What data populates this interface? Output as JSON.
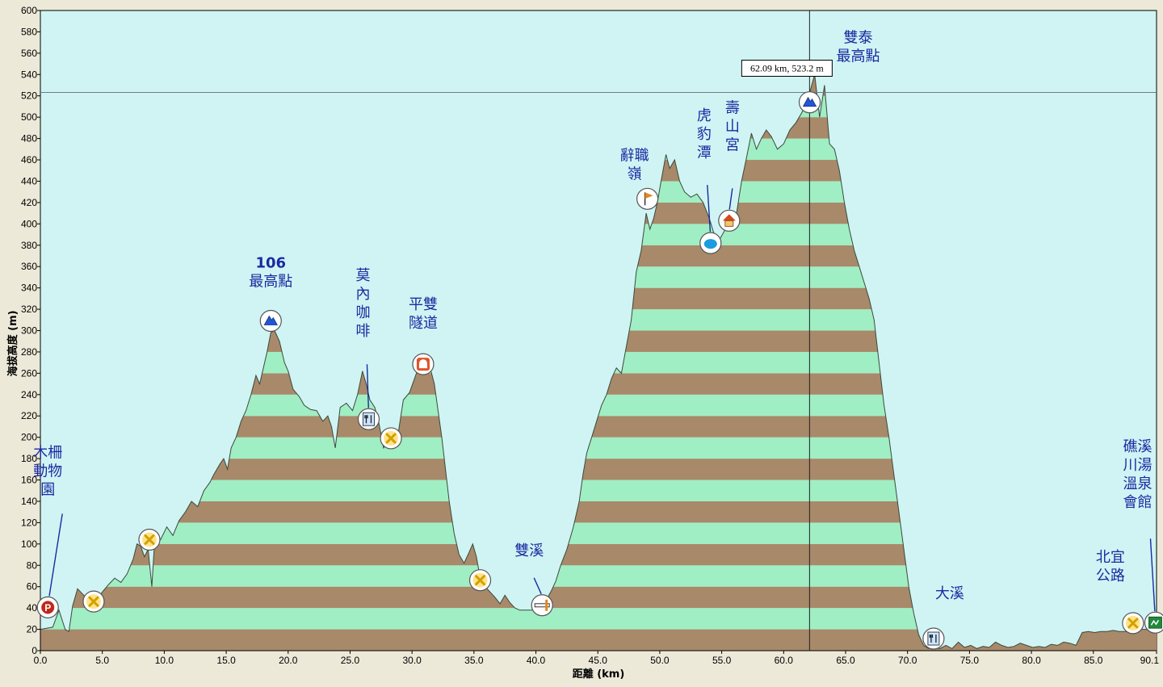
{
  "chart_data": {
    "type": "area",
    "xlabel": "距離 (km)",
    "ylabel": "海拔高度 (m)",
    "xlim": [
      0,
      90.1
    ],
    "ylim": [
      0,
      600
    ],
    "x_ticks": [
      0,
      5,
      10,
      15,
      20,
      25,
      30,
      35,
      40,
      45,
      50,
      55,
      60,
      65,
      70,
      75,
      80,
      85,
      90.1
    ],
    "x_tick_labels": [
      "0.0",
      "5.0",
      "10.0",
      "15.0",
      "20.0",
      "25.0",
      "30.0",
      "35.0",
      "40.0",
      "45.0",
      "50.0",
      "55.0",
      "60.0",
      "65.0",
      "70.0",
      "75.0",
      "80.0",
      "85.0",
      "90.1"
    ],
    "y_ticks": [
      0,
      20,
      40,
      60,
      80,
      100,
      120,
      140,
      160,
      180,
      200,
      220,
      240,
      260,
      280,
      300,
      320,
      340,
      360,
      380,
      400,
      420,
      440,
      460,
      480,
      500,
      520,
      540,
      560,
      580,
      600
    ],
    "grid": false,
    "band_colors": [
      "#a8896a",
      "#a0eec4"
    ],
    "band_height_m": 20,
    "plot_background": "#d0f4f4",
    "series": [
      {
        "points": [
          [
            0,
            20
          ],
          [
            1.0,
            22
          ],
          [
            1.5,
            38
          ],
          [
            2.0,
            20
          ],
          [
            2.3,
            18
          ],
          [
            2.6,
            42
          ],
          [
            3.0,
            58
          ],
          [
            3.5,
            52
          ],
          [
            4.0,
            45
          ],
          [
            4.5,
            48
          ],
          [
            5.0,
            55
          ],
          [
            5.5,
            62
          ],
          [
            6.0,
            68
          ],
          [
            6.5,
            64
          ],
          [
            7.0,
            72
          ],
          [
            7.5,
            86
          ],
          [
            7.8,
            100
          ],
          [
            8.1,
            98
          ],
          [
            8.4,
            88
          ],
          [
            8.7,
            95
          ],
          [
            9.0,
            60
          ],
          [
            9.2,
            98
          ],
          [
            9.7,
            104
          ],
          [
            10.2,
            116
          ],
          [
            10.7,
            108
          ],
          [
            11.2,
            122
          ],
          [
            11.7,
            130
          ],
          [
            12.2,
            140
          ],
          [
            12.7,
            135
          ],
          [
            13.2,
            150
          ],
          [
            13.7,
            158
          ],
          [
            14.0,
            165
          ],
          [
            14.5,
            175
          ],
          [
            14.8,
            180
          ],
          [
            15.1,
            170
          ],
          [
            15.4,
            190
          ],
          [
            15.8,
            200
          ],
          [
            16.2,
            215
          ],
          [
            16.6,
            225
          ],
          [
            17.0,
            240
          ],
          [
            17.4,
            258
          ],
          [
            17.7,
            250
          ],
          [
            18.0,
            265
          ],
          [
            18.3,
            280
          ],
          [
            18.6,
            298
          ],
          [
            18.9,
            300
          ],
          [
            19.3,
            290
          ],
          [
            19.7,
            270
          ],
          [
            20.0,
            262
          ],
          [
            20.4,
            245
          ],
          [
            20.9,
            238
          ],
          [
            21.3,
            230
          ],
          [
            21.8,
            226
          ],
          [
            22.3,
            225
          ],
          [
            22.8,
            215
          ],
          [
            23.2,
            220
          ],
          [
            23.5,
            210
          ],
          [
            23.8,
            190
          ],
          [
            24.2,
            228
          ],
          [
            24.7,
            232
          ],
          [
            25.2,
            225
          ],
          [
            25.6,
            240
          ],
          [
            26.0,
            262
          ],
          [
            26.3,
            250
          ],
          [
            26.6,
            235
          ],
          [
            27.0,
            228
          ],
          [
            27.3,
            215
          ],
          [
            27.7,
            190
          ],
          [
            28.0,
            195
          ],
          [
            28.5,
            198
          ],
          [
            28.9,
            205
          ],
          [
            29.3,
            235
          ],
          [
            29.8,
            242
          ],
          [
            30.2,
            255
          ],
          [
            30.6,
            268
          ],
          [
            31.0,
            275
          ],
          [
            31.4,
            268
          ],
          [
            31.8,
            250
          ],
          [
            32.1,
            225
          ],
          [
            32.4,
            200
          ],
          [
            32.7,
            170
          ],
          [
            33.0,
            140
          ],
          [
            33.4,
            110
          ],
          [
            33.8,
            90
          ],
          [
            34.2,
            82
          ],
          [
            34.6,
            92
          ],
          [
            34.9,
            100
          ],
          [
            35.2,
            88
          ],
          [
            35.5,
            68
          ],
          [
            35.9,
            60
          ],
          [
            36.3,
            55
          ],
          [
            36.7,
            50
          ],
          [
            37.1,
            44
          ],
          [
            37.5,
            52
          ],
          [
            37.9,
            45
          ],
          [
            38.3,
            40
          ],
          [
            38.7,
            38
          ],
          [
            39.2,
            38
          ],
          [
            39.7,
            38
          ],
          [
            40.2,
            40
          ],
          [
            40.7,
            45
          ],
          [
            41.2,
            55
          ],
          [
            41.6,
            65
          ],
          [
            42.0,
            80
          ],
          [
            42.5,
            95
          ],
          [
            43.0,
            115
          ],
          [
            43.5,
            140
          ],
          [
            43.8,
            165
          ],
          [
            44.1,
            185
          ],
          [
            44.5,
            200
          ],
          [
            44.9,
            215
          ],
          [
            45.3,
            230
          ],
          [
            45.7,
            240
          ],
          [
            46.1,
            255
          ],
          [
            46.5,
            265
          ],
          [
            46.9,
            260
          ],
          [
            47.3,
            285
          ],
          [
            47.7,
            310
          ],
          [
            48.1,
            355
          ],
          [
            48.5,
            375
          ],
          [
            48.9,
            410
          ],
          [
            49.2,
            395
          ],
          [
            49.5,
            405
          ],
          [
            49.8,
            420
          ],
          [
            50.1,
            440
          ],
          [
            50.5,
            465
          ],
          [
            50.8,
            452
          ],
          [
            51.2,
            460
          ],
          [
            51.6,
            440
          ],
          [
            52.0,
            430
          ],
          [
            52.5,
            425
          ],
          [
            53.0,
            428
          ],
          [
            53.5,
            420
          ],
          [
            54.0,
            405
          ],
          [
            54.4,
            390
          ],
          [
            54.8,
            385
          ],
          [
            55.3,
            395
          ],
          [
            55.7,
            400
          ],
          [
            56.2,
            410
          ],
          [
            56.6,
            440
          ],
          [
            57.0,
            462
          ],
          [
            57.4,
            485
          ],
          [
            57.8,
            470
          ],
          [
            58.2,
            480
          ],
          [
            58.6,
            488
          ],
          [
            59.0,
            482
          ],
          [
            59.5,
            470
          ],
          [
            60.0,
            475
          ],
          [
            60.5,
            488
          ],
          [
            61.0,
            495
          ],
          [
            61.5,
            505
          ],
          [
            62.1,
            523
          ],
          [
            62.5,
            540
          ],
          [
            62.9,
            500
          ],
          [
            63.3,
            530
          ],
          [
            63.7,
            475
          ],
          [
            64.1,
            470
          ],
          [
            64.5,
            450
          ],
          [
            64.9,
            420
          ],
          [
            65.3,
            395
          ],
          [
            65.7,
            375
          ],
          [
            66.1,
            360
          ],
          [
            66.5,
            345
          ],
          [
            66.9,
            330
          ],
          [
            67.3,
            310
          ],
          [
            67.7,
            270
          ],
          [
            68.1,
            230
          ],
          [
            68.5,
            200
          ],
          [
            68.9,
            165
          ],
          [
            69.3,
            130
          ],
          [
            69.7,
            95
          ],
          [
            70.1,
            60
          ],
          [
            70.5,
            35
          ],
          [
            70.9,
            15
          ],
          [
            71.3,
            5
          ],
          [
            71.7,
            2
          ],
          [
            72.1,
            4
          ],
          [
            72.6,
            2
          ],
          [
            73.1,
            5
          ],
          [
            73.6,
            2
          ],
          [
            74.1,
            8
          ],
          [
            74.6,
            3
          ],
          [
            75.1,
            5
          ],
          [
            75.6,
            2
          ],
          [
            76.1,
            4
          ],
          [
            76.6,
            3
          ],
          [
            77.1,
            8
          ],
          [
            77.6,
            5
          ],
          [
            78.1,
            3
          ],
          [
            78.6,
            4
          ],
          [
            79.1,
            7
          ],
          [
            79.6,
            5
          ],
          [
            80.1,
            3
          ],
          [
            80.6,
            4
          ],
          [
            81.1,
            3
          ],
          [
            81.6,
            6
          ],
          [
            82.1,
            5
          ],
          [
            82.6,
            8
          ],
          [
            83.1,
            7
          ],
          [
            83.6,
            5
          ],
          [
            84.1,
            17
          ],
          [
            84.6,
            18
          ],
          [
            85.1,
            17
          ],
          [
            85.6,
            18
          ],
          [
            86.1,
            18
          ],
          [
            86.6,
            19
          ],
          [
            87.1,
            18
          ],
          [
            87.6,
            18
          ],
          [
            88.1,
            19
          ],
          [
            88.6,
            20
          ],
          [
            89.1,
            20
          ],
          [
            89.6,
            20
          ],
          [
            90.1,
            20
          ]
        ]
      }
    ],
    "cursor": {
      "x": 62.09,
      "y": 523.2,
      "label": "62.09 km, 523.2 m"
    },
    "annotations": [
      {
        "lines": [
          "木柵",
          "動物",
          "園"
        ],
        "x": 0.6,
        "y": 30,
        "icon": "parking-icon"
      },
      {
        "lines": [
          "106",
          "最高點"
        ],
        "x": 18.6,
        "y": 300,
        "icon": "summit-icon",
        "bold_first": true
      },
      {
        "lines": [
          "莫",
          "內",
          "咖",
          "啡"
        ],
        "x": 26.5,
        "y": 220,
        "icon": "restaurant-icon"
      },
      {
        "lines": [
          "平雙",
          "隧道"
        ],
        "x": 30.9,
        "y": 270,
        "icon": "tunnel-icon"
      },
      {
        "lines": [
          "雙溪"
        ],
        "x": 40.5,
        "y": 38,
        "icon": "bridge-icon"
      },
      {
        "lines": [
          "辭職",
          "嶺"
        ],
        "x": 49.0,
        "y": 425,
        "icon": "pass-icon"
      },
      {
        "lines": [
          "虎",
          "豹",
          "潭"
        ],
        "x": 54.1,
        "y": 382,
        "icon": "lake-icon"
      },
      {
        "lines": [
          "壽",
          "山",
          "宮"
        ],
        "x": 55.6,
        "y": 400,
        "icon": "temple-icon"
      },
      {
        "lines": [
          "雙泰",
          "最高點"
        ],
        "x": 62.1,
        "y": 517,
        "icon": "summit-icon"
      },
      {
        "lines": [
          "大溪"
        ],
        "x": 72.1,
        "y": 3,
        "icon": "restaurant-icon"
      },
      {
        "lines": [
          "北宜",
          "公路"
        ],
        "x": 88.2,
        "y": 19,
        "icon": "junction-icon"
      },
      {
        "lines": [
          "礁溪",
          "川湯",
          "溫泉",
          "會館"
        ],
        "x": 90.0,
        "y": 18,
        "icon": "hotel-icon"
      }
    ],
    "junction_markers": [
      {
        "x": 4.3,
        "y": 40
      },
      {
        "x": 8.8,
        "y": 98
      },
      {
        "x": 28.3,
        "y": 193
      },
      {
        "x": 35.5,
        "y": 60
      }
    ]
  }
}
